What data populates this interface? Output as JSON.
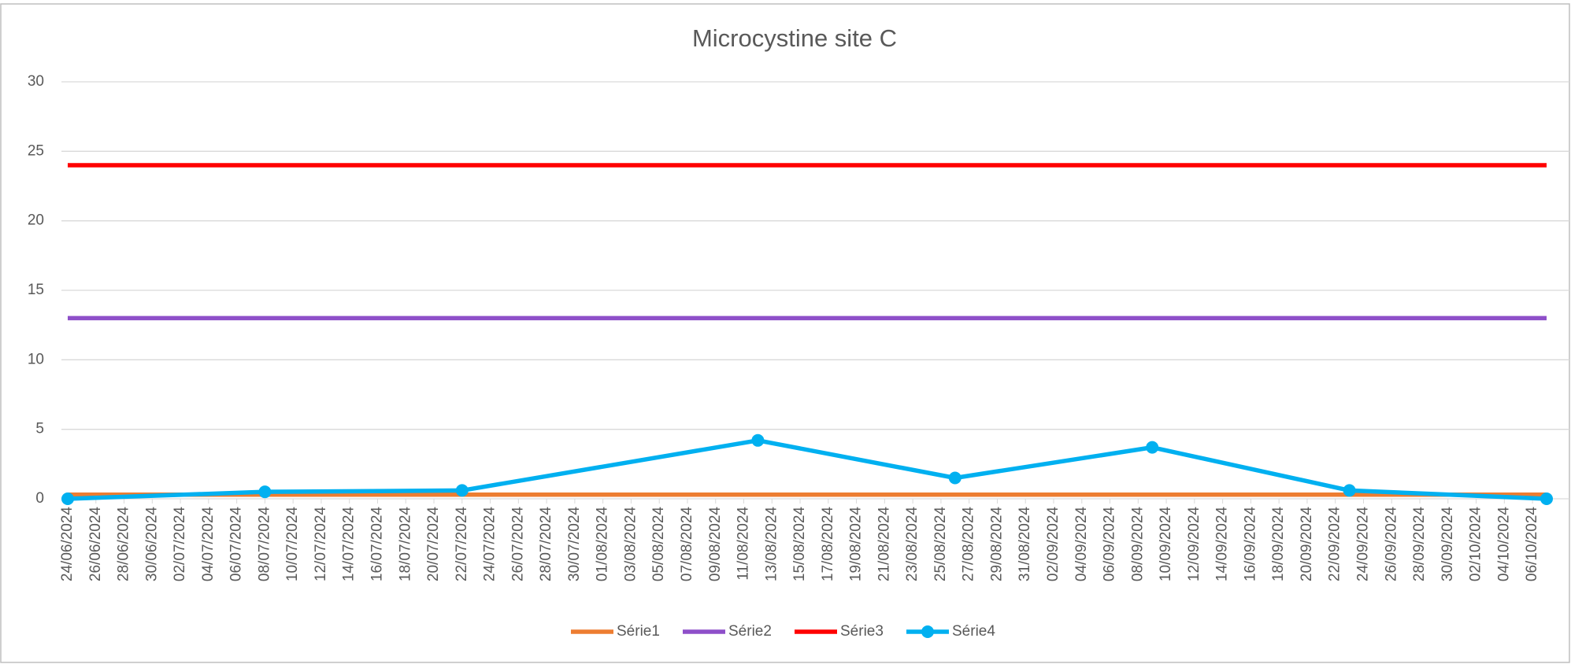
{
  "chart_data": {
    "type": "line",
    "title": "Microcystine site C",
    "x": [
      "24/06/2024",
      "08/07/2024",
      "22/07/2024",
      "12/08/2024",
      "26/08/2024",
      "09/09/2024",
      "23/09/2024",
      "07/10/2024"
    ],
    "series": [
      {
        "name": "Série1",
        "color": "#ed7d31",
        "values": [
          0.3,
          0.3,
          0.3,
          0.3,
          0.3,
          0.3,
          0.3,
          0.3
        ],
        "markers": false
      },
      {
        "name": "Série2",
        "color": "#8e4fc9",
        "values": [
          13,
          13,
          13,
          13,
          13,
          13,
          13,
          13
        ],
        "markers": false
      },
      {
        "name": "Série3",
        "color": "#ff0000",
        "values": [
          24,
          24,
          24,
          24,
          24,
          24,
          24,
          24
        ],
        "markers": false
      },
      {
        "name": "Série4",
        "color": "#00b0f0",
        "values": [
          0,
          0.5,
          0.6,
          4.2,
          1.5,
          3.7,
          0.6,
          0
        ],
        "markers": true
      }
    ],
    "xlim": [
      "24/06/2024",
      "07/10/2024"
    ],
    "xticks": [
      "24/06/2024",
      "26/06/2024",
      "28/06/2024",
      "30/06/2024",
      "02/07/2024",
      "04/07/2024",
      "06/07/2024",
      "08/07/2024",
      "10/07/2024",
      "12/07/2024",
      "14/07/2024",
      "16/07/2024",
      "18/07/2024",
      "20/07/2024",
      "22/07/2024",
      "24/07/2024",
      "26/07/2024",
      "28/07/2024",
      "30/07/2024",
      "01/08/2024",
      "03/08/2024",
      "05/08/2024",
      "07/08/2024",
      "09/08/2024",
      "11/08/2024",
      "13/08/2024",
      "15/08/2024",
      "17/08/2024",
      "19/08/2024",
      "21/08/2024",
      "23/08/2024",
      "25/08/2024",
      "27/08/2024",
      "29/08/2024",
      "31/08/2024",
      "02/09/2024",
      "04/09/2024",
      "06/09/2024",
      "08/09/2024",
      "10/09/2024",
      "12/09/2024",
      "14/09/2024",
      "16/09/2024",
      "18/09/2024",
      "20/09/2024",
      "22/09/2024",
      "24/09/2024",
      "26/09/2024",
      "28/09/2024",
      "30/09/2024",
      "02/10/2024",
      "04/10/2024",
      "06/10/2024"
    ],
    "ylim": [
      0,
      30
    ],
    "yticks": [
      0,
      5,
      10,
      15,
      20,
      25,
      30
    ],
    "grid": true,
    "legend": "bottom"
  }
}
